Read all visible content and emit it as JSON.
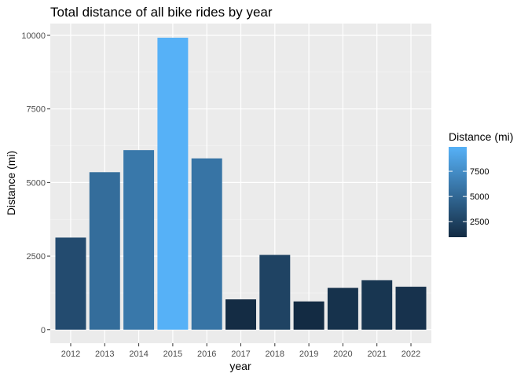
{
  "chart_data": {
    "type": "bar",
    "title": "Total distance of all bike rides by year",
    "xlabel": "year",
    "ylabel": "Distance (mi)",
    "categories": [
      "2012",
      "2013",
      "2014",
      "2015",
      "2016",
      "2017",
      "2018",
      "2019",
      "2020",
      "2021",
      "2022"
    ],
    "values": [
      3130,
      5350,
      6100,
      9920,
      5820,
      1030,
      2540,
      960,
      1420,
      1680,
      1460
    ],
    "ylim": [
      -460,
      10400
    ],
    "yticks": [
      0,
      2500,
      5000,
      7500,
      10000
    ],
    "ytick_labels": [
      "0",
      "2500",
      "5000",
      "7500",
      "10000"
    ],
    "grid": true,
    "legend": {
      "title": "Distance (mi)",
      "placement": "right",
      "type": "colorbar",
      "ticks": [
        2500,
        5000,
        7500
      ],
      "tick_labels": [
        "2500",
        "5000",
        "7500"
      ],
      "range": [
        960,
        9920
      ],
      "color_low": "#132B43",
      "color_high": "#56B1F7"
    },
    "colors": {
      "panel_background": "#EBEBEB",
      "grid_major": "#FFFFFF",
      "grid_minor": "#F5F5F5"
    }
  }
}
